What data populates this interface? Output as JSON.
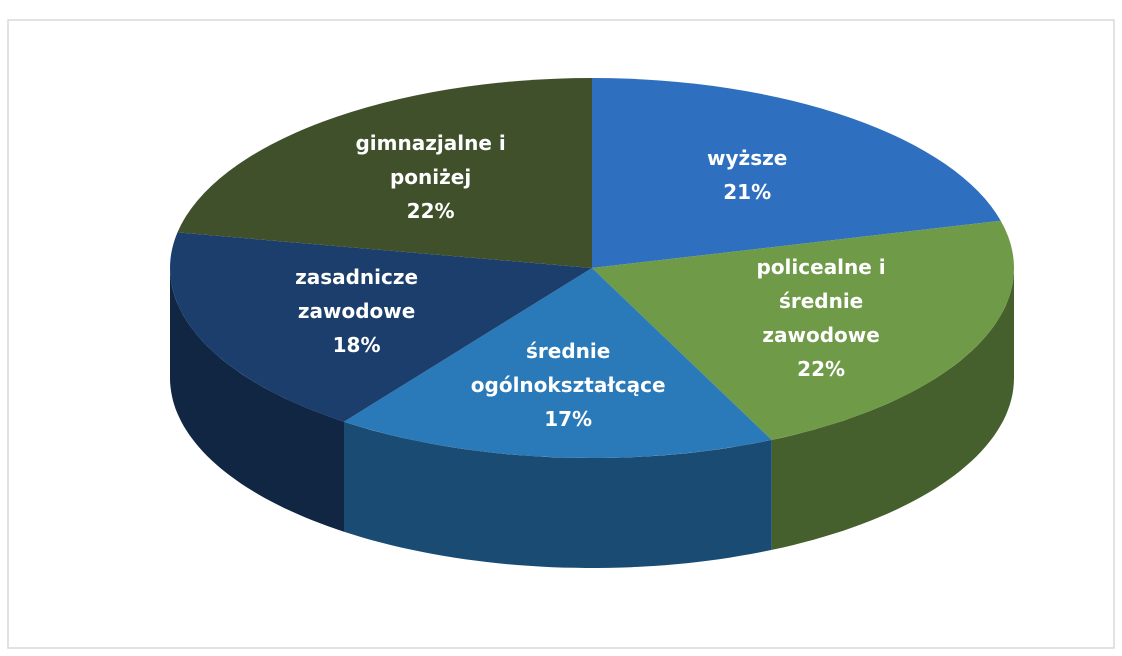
{
  "chart_data": {
    "type": "pie3d",
    "categories": [
      "wyższe",
      "policealne i średnie zawodowe",
      "średnie ogólnokształcące",
      "zasadnicze zawodowe",
      "gimnazjalne i poniżej"
    ],
    "values": [
      21,
      22,
      17,
      18,
      22
    ],
    "value_labels": [
      "21%",
      "22%",
      "17%",
      "18%",
      "22%"
    ],
    "colors": [
      "#2f6fbf",
      "#6f9a48",
      "#2a7ab9",
      "#1b3e6c",
      "#3f502b"
    ]
  }
}
